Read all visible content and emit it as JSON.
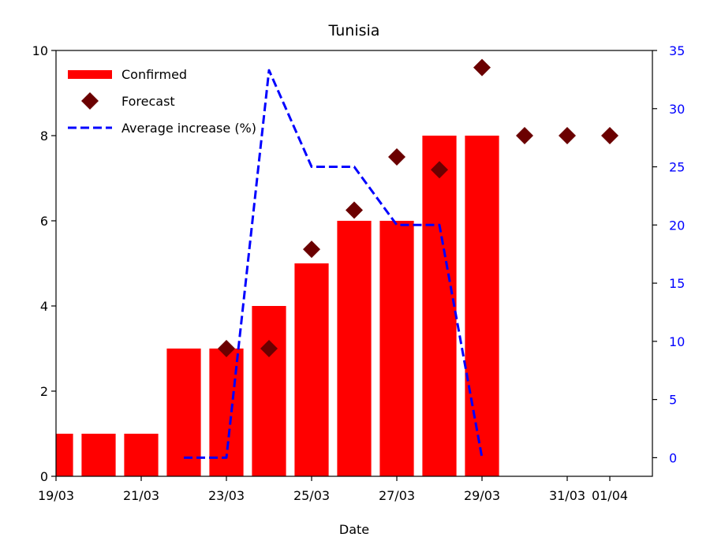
{
  "chart_data": {
    "type": "bar",
    "title": "Tunisia",
    "xlabel": "Date",
    "ylabel_left": "",
    "ylabel_right": "",
    "x_dates": [
      "19/03",
      "20/03",
      "21/03",
      "22/03",
      "23/03",
      "24/03",
      "25/03",
      "26/03",
      "27/03",
      "28/03",
      "29/03",
      "30/03",
      "31/03",
      "01/04"
    ],
    "x_tick_labels": [
      "19/03",
      "21/03",
      "23/03",
      "25/03",
      "27/03",
      "29/03",
      "31/03",
      "01/04"
    ],
    "ylim_left": [
      0,
      10
    ],
    "yticks_left": [
      "0",
      "2",
      "4",
      "6",
      "8",
      "10"
    ],
    "ylim_right": [
      -1.6,
      35
    ],
    "yticks_right": [
      "0",
      "5",
      "10",
      "15",
      "20",
      "25",
      "30",
      "35"
    ],
    "series": [
      {
        "name": "Confirmed",
        "kind": "bar",
        "color": "#ff0000",
        "axis": "left",
        "points": [
          {
            "x": "19/03",
            "y": 1
          },
          {
            "x": "20/03",
            "y": 1
          },
          {
            "x": "21/03",
            "y": 1
          },
          {
            "x": "22/03",
            "y": 3
          },
          {
            "x": "23/03",
            "y": 3
          },
          {
            "x": "24/03",
            "y": 4
          },
          {
            "x": "25/03",
            "y": 5
          },
          {
            "x": "26/03",
            "y": 6
          },
          {
            "x": "27/03",
            "y": 6
          },
          {
            "x": "28/03",
            "y": 8
          },
          {
            "x": "29/03",
            "y": 8
          }
        ]
      },
      {
        "name": "Forecast",
        "kind": "scatter",
        "marker": "diamond",
        "color": "#6b0000",
        "axis": "left",
        "points": [
          {
            "x": "23/03",
            "y": 3.0
          },
          {
            "x": "24/03",
            "y": 3.0
          },
          {
            "x": "25/03",
            "y": 5.33
          },
          {
            "x": "26/03",
            "y": 6.25
          },
          {
            "x": "27/03",
            "y": 7.5
          },
          {
            "x": "28/03",
            "y": 7.2
          },
          {
            "x": "29/03",
            "y": 9.6
          },
          {
            "x": "30/03",
            "y": 8.0
          },
          {
            "x": "31/03",
            "y": 8.0
          },
          {
            "x": "01/04",
            "y": 8.0
          }
        ]
      },
      {
        "name": "Average increase (%)",
        "kind": "line",
        "style": "dashed",
        "color": "#0000ff",
        "axis": "right",
        "points": [
          {
            "x": "22/03",
            "y": 0
          },
          {
            "x": "23/03",
            "y": 0
          },
          {
            "x": "24/03",
            "y": 33.3
          },
          {
            "x": "25/03",
            "y": 25
          },
          {
            "x": "26/03",
            "y": 25
          },
          {
            "x": "27/03",
            "y": 20
          },
          {
            "x": "28/03",
            "y": 20
          },
          {
            "x": "29/03",
            "y": 0
          }
        ]
      }
    ],
    "grid": false,
    "legend_position": "top-left"
  },
  "colors": {
    "axis": "#000000",
    "right_axis_text": "#0000ff"
  }
}
